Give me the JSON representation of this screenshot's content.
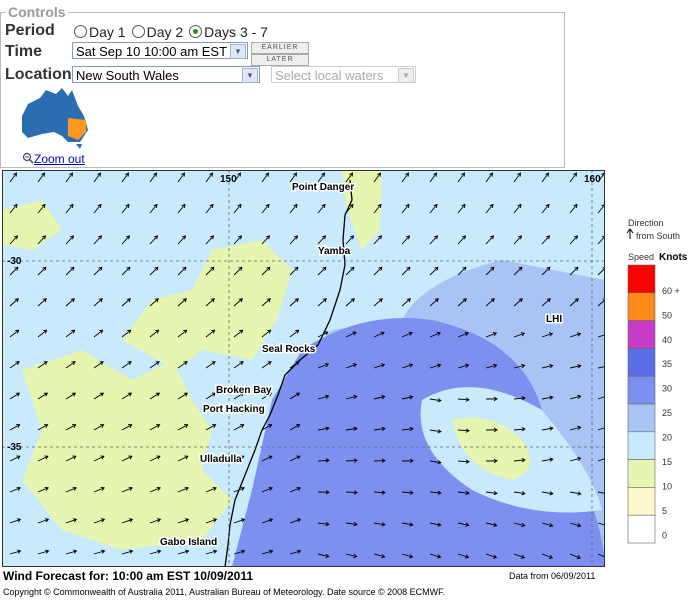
{
  "controls": {
    "legend": "Controls",
    "period": {
      "label": "Period",
      "options": [
        "Day 1",
        "Day 2",
        "Days 3 - 7"
      ],
      "selected": 2
    },
    "time": {
      "label": "Time",
      "selected": "Sat Sep 10 10:00 am EST",
      "earlier": "EARLIER",
      "later": "LATER"
    },
    "location": {
      "label": "Location",
      "selected": "New South Wales",
      "local_waters": "Select local waters"
    },
    "zoom_out": "Zoom out"
  },
  "map": {
    "lon_labels": [
      "150",
      "160"
    ],
    "lat_labels": [
      "-30",
      "-35"
    ],
    "places": [
      "Point Danger",
      "Yamba",
      "LHI",
      "Seal Rocks",
      "Broken Bay",
      "Port Hacking",
      "Ulladulla",
      "Gabo Island"
    ]
  },
  "legend": {
    "direction": "Direction",
    "from_south": "from South",
    "speed": "Speed",
    "units": "Knots",
    "colors": [
      "#ff0000",
      "#ff8a1c",
      "#c83cc8",
      "#5a6ee8",
      "#7c90f0",
      "#a8c4f4",
      "#c8eafc",
      "#e6f5b0",
      "#fff8cc",
      "#ffffff"
    ],
    "labels": [
      "60 +",
      "50",
      "40",
      "35",
      "30",
      "25",
      "20",
      "15",
      "10",
      "5",
      "0"
    ]
  },
  "footer": {
    "forecast": "Wind Forecast for: 10:00 am EST 10/09/2011",
    "data_from": "Data from 06/09/2011",
    "copyright": "Copyright © Commonwealth of Australia 2011, Australian Bureau of Meteorology. Date source © 2008 ECMWF."
  }
}
